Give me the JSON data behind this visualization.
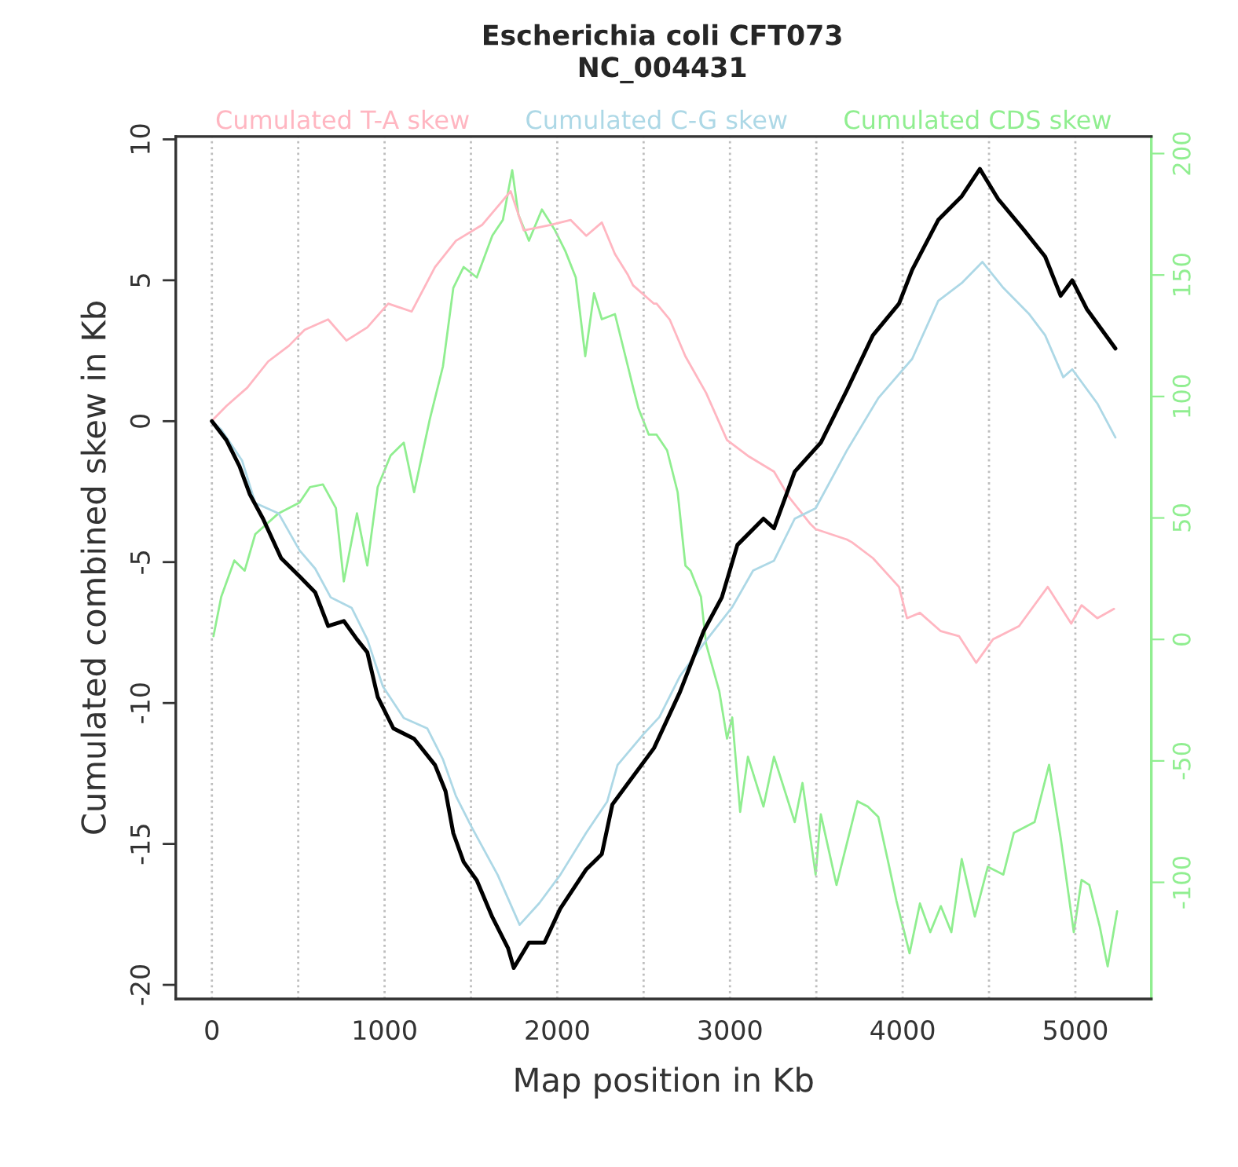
{
  "chart_data": {
    "type": "line",
    "title": "Escherichia coli CFT073",
    "subtitle": "NC_004431",
    "xlabel": "Map position in Kb",
    "ylabel": "Cumulated combined skew in Kb",
    "xlim": [
      -209,
      5440
    ],
    "xticks": [
      0,
      1000,
      2000,
      3000,
      4000,
      5000
    ],
    "ylim": [
      -20.5,
      10.1
    ],
    "yticks": [
      -20,
      -15,
      -10,
      -5,
      0,
      5,
      10
    ],
    "y2lim": [
      -148,
      207
    ],
    "y2ticks": [
      -100,
      -50,
      0,
      50,
      100,
      150,
      200
    ],
    "legend": "top",
    "marker": "none",
    "line_style": "solid",
    "ref_lines": [
      {
        "axis": "x",
        "value": 0,
        "color": "#bebebe",
        "line_style": "dotted"
      },
      {
        "axis": "x",
        "value": 500,
        "color": "#bebebe",
        "line_style": "dotted"
      },
      {
        "axis": "x",
        "value": 1000,
        "color": "#bebebe",
        "line_style": "dotted"
      },
      {
        "axis": "x",
        "value": 1500,
        "color": "#bebebe",
        "line_style": "dotted"
      },
      {
        "axis": "x",
        "value": 2000,
        "color": "#bebebe",
        "line_style": "dotted"
      },
      {
        "axis": "x",
        "value": 2500,
        "color": "#bebebe",
        "line_style": "dotted"
      },
      {
        "axis": "x",
        "value": 3000,
        "color": "#bebebe",
        "line_style": "dotted"
      },
      {
        "axis": "x",
        "value": 3500,
        "color": "#bebebe",
        "line_style": "dotted"
      },
      {
        "axis": "x",
        "value": 4000,
        "color": "#bebebe",
        "line_style": "dotted"
      },
      {
        "axis": "x",
        "value": 4500,
        "color": "#bebebe",
        "line_style": "dotted"
      },
      {
        "axis": "x",
        "value": 5000,
        "color": "#bebebe",
        "line_style": "dotted"
      }
    ],
    "series": [
      {
        "name": "Cumulated T-A skew",
        "color": "#ffb6c1",
        "x": [
          0,
          9,
          84,
          205,
          326,
          447,
          537,
          673,
          779,
          900,
          1021,
          1157,
          1292,
          1413,
          1564,
          1730,
          1806,
          1957,
          2077,
          2168,
          2258,
          2334,
          2409,
          2439,
          2560,
          2575,
          2651,
          2742,
          2862,
          2983,
          3104,
          3255,
          3345,
          3466,
          3496,
          3677,
          3707,
          3828,
          3979,
          4025,
          4100,
          4221,
          4327,
          4426,
          4523,
          4674,
          4840,
          4976,
          5036,
          5127,
          5224
        ],
        "values": [
          0,
          0.07,
          0.54,
          1.19,
          2.12,
          2.68,
          3.24,
          3.61,
          2.86,
          3.33,
          4.17,
          3.89,
          5.47,
          6.4,
          6.96,
          8.16,
          6.77,
          6.96,
          7.14,
          6.58,
          7.05,
          5.93,
          5.19,
          4.82,
          4.17,
          4.17,
          3.61,
          2.3,
          1.0,
          -0.67,
          -1.23,
          -1.79,
          -2.72,
          -3.65,
          -3.83,
          -4.2,
          -4.3,
          -4.86,
          -5.88,
          -6.99,
          -6.8,
          -7.45,
          -7.63,
          -8.57,
          -7.74,
          -7.27,
          -5.88,
          -7.18,
          -6.53,
          -6.99,
          -6.66
        ]
      },
      {
        "name": "Cumulated C-G skew",
        "color": "#add8e6",
        "x": [
          0,
          54,
          175,
          251,
          386,
          507,
          598,
          688,
          809,
          900,
          990,
          1111,
          1247,
          1338,
          1413,
          1504,
          1655,
          1782,
          1896,
          2017,
          2168,
          2289,
          2349,
          2500,
          2591,
          2711,
          2847,
          3013,
          3134,
          3255,
          3375,
          3496,
          3677,
          3859,
          4055,
          4206,
          4342,
          4462,
          4583,
          4734,
          4825,
          4930,
          4982,
          5127,
          5232
        ],
        "values": [
          0,
          -0.3,
          -1.4,
          -2.9,
          -3.27,
          -4.58,
          -5.23,
          -6.25,
          -6.62,
          -7.74,
          -9.41,
          -10.53,
          -10.9,
          -12.0,
          -13.3,
          -14.4,
          -16.1,
          -17.87,
          -17.1,
          -16.1,
          -14.6,
          -13.5,
          -12.2,
          -11.1,
          -10.5,
          -9.04,
          -7.9,
          -6.6,
          -5.3,
          -4.95,
          -3.46,
          -3.09,
          -1.04,
          0.82,
          2.21,
          4.27,
          4.9,
          5.65,
          4.73,
          3.79,
          3.05,
          1.56,
          1.84,
          0.63,
          -0.58
        ]
      },
      {
        "name": "Cumulated CDS skew",
        "color": "#90ee90",
        "axis": "y2",
        "x": [
          9,
          54,
          130,
          190,
          251,
          386,
          507,
          568,
          643,
          718,
          764,
          840,
          900,
          960,
          1035,
          1111,
          1171,
          1262,
          1338,
          1398,
          1458,
          1534,
          1624,
          1685,
          1739,
          1775,
          1836,
          1911,
          1987,
          2047,
          2107,
          2162,
          2213,
          2258,
          2334,
          2409,
          2439,
          2470,
          2530,
          2575,
          2636,
          2697,
          2742,
          2772,
          2832,
          2862,
          2938,
          2983,
          3013,
          3059,
          3104,
          3194,
          3255,
          3375,
          3420,
          3496,
          3526,
          3617,
          3738,
          3798,
          3859,
          3919,
          3964,
          4040,
          4100,
          4160,
          4221,
          4282,
          4342,
          4418,
          4493,
          4583,
          4644,
          4764,
          4848,
          4915,
          4991,
          5036,
          5081,
          5142,
          5187,
          5242
        ],
        "values": [
          1.3,
          17.5,
          32.5,
          28.3,
          43.3,
          51.9,
          56.3,
          62.7,
          63.8,
          54.1,
          23.9,
          51.9,
          30.4,
          62.7,
          75.7,
          81.0,
          60.6,
          90.7,
          112.4,
          144.7,
          153.3,
          149,
          166.2,
          172.7,
          193.2,
          174.8,
          164.1,
          177,
          168.4,
          159.8,
          149,
          116.6,
          142.5,
          131.8,
          133.9,
          112.4,
          103.7,
          95.1,
          84.3,
          84.3,
          77.8,
          60.6,
          30.4,
          28.3,
          17.5,
          -1.9,
          -21.3,
          -40.8,
          -32.1,
          -71,
          -48.3,
          -68.8,
          -48.3,
          -75.2,
          -59.1,
          -96.8,
          -72,
          -101.1,
          -66.6,
          -68.8,
          -73.1,
          -92.5,
          -107.6,
          -129.2,
          -108.7,
          -120.5,
          -109.8,
          -120.5,
          -90.4,
          -114.1,
          -93.6,
          -96.8,
          -79.6,
          -75.2,
          -51.6,
          -81.7,
          -120.5,
          -99,
          -101.1,
          -118.4,
          -134.6,
          -111.9
        ]
      },
      {
        "color": "#000000",
        "x": [
          0,
          84,
          160,
          220,
          296,
          401,
          507,
          598,
          673,
          764,
          840,
          900,
          960,
          1051,
          1171,
          1292,
          1353,
          1398,
          1458,
          1534,
          1624,
          1715,
          1748,
          1836,
          1926,
          2017,
          2168,
          2258,
          2319,
          2409,
          2560,
          2711,
          2847,
          2953,
          3043,
          3194,
          3255,
          3375,
          3526,
          3677,
          3828,
          3979,
          4055,
          4206,
          4342,
          4447,
          4553,
          4704,
          4825,
          4915,
          4982,
          5066,
          5232
        ],
        "values": [
          0,
          -0.67,
          -1.6,
          -2.6,
          -3.46,
          -4.86,
          -5.5,
          -6.07,
          -7.27,
          -7.09,
          -7.74,
          -8.2,
          -9.78,
          -10.9,
          -11.27,
          -12.2,
          -13.13,
          -14.62,
          -15.64,
          -16.29,
          -17.6,
          -18.7,
          -19.4,
          -18.5,
          -18.5,
          -17.3,
          -15.9,
          -15.36,
          -13.6,
          -12.85,
          -11.6,
          -9.6,
          -7.46,
          -6.25,
          -4.39,
          -3.46,
          -3.8,
          -1.79,
          -0.76,
          1.1,
          3.05,
          4.17,
          5.37,
          7.14,
          7.98,
          8.95,
          7.88,
          6.77,
          5.84,
          4.45,
          5.0,
          3.98,
          2.58
        ]
      }
    ]
  }
}
